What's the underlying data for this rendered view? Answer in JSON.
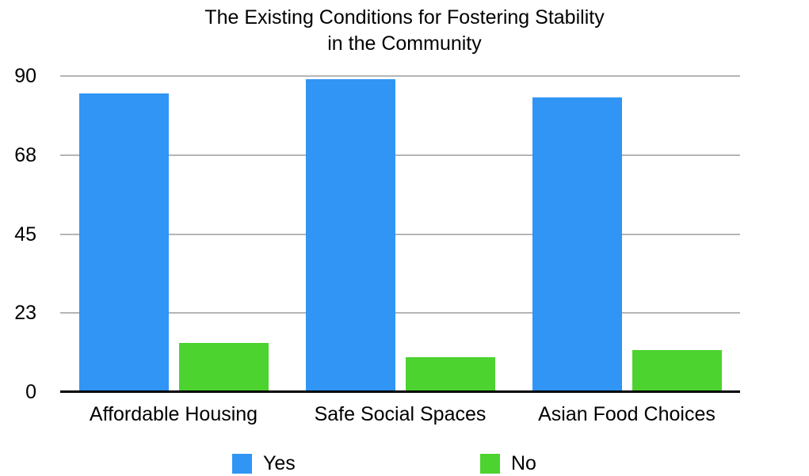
{
  "chart_data": {
    "type": "bar",
    "title": "The Existing Conditions for Fostering Stability\nin the Community",
    "categories": [
      "Affordable Housing",
      "Safe Social Spaces",
      "Asian Food Choices"
    ],
    "series": [
      {
        "name": "Yes",
        "color": "#3095F5",
        "values": [
          85,
          89,
          84
        ]
      },
      {
        "name": "No",
        "color": "#4CD32F",
        "values": [
          14,
          10,
          12
        ]
      }
    ],
    "xlabel": "",
    "ylabel": "",
    "ylim": [
      0,
      90
    ],
    "yticklabels": [
      "90",
      "68",
      "45",
      "23",
      "0"
    ],
    "grid": true,
    "legend_position": "bottom"
  },
  "colors": {
    "background": "#FFFFFF",
    "gridline": "#B5B5B5",
    "axis_line": "#000000",
    "text": "#000000"
  }
}
